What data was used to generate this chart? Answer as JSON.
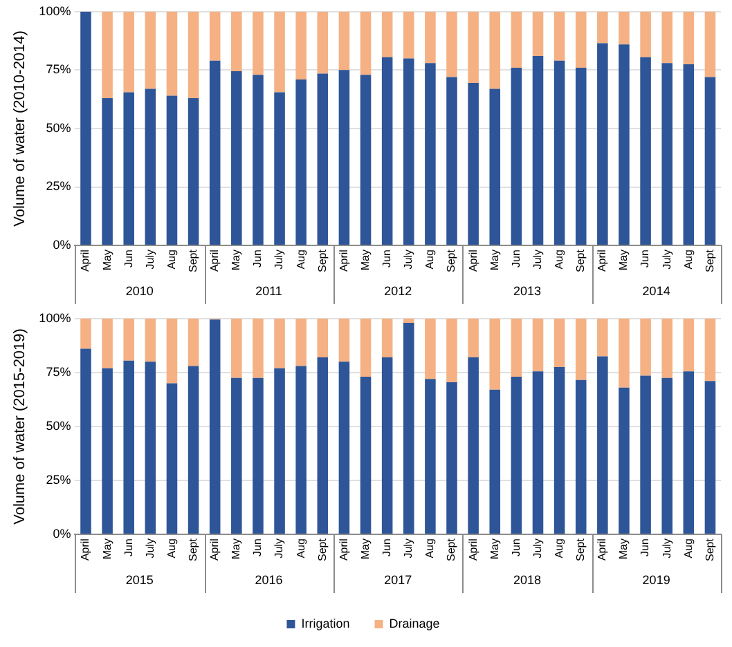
{
  "chart_data": [
    {
      "type": "bar",
      "stacked": true,
      "ylabel": "Volume of water (2010-2014)",
      "categories": [
        "April",
        "May",
        "Jun",
        "July",
        "Aug",
        "Sept",
        "April",
        "May",
        "Jun",
        "July",
        "Aug",
        "Sept",
        "April",
        "May",
        "Jun",
        "July",
        "Aug",
        "Sept",
        "April",
        "May",
        "Jun",
        "July",
        "Aug",
        "Sept",
        "April",
        "May",
        "Jun",
        "July",
        "Aug",
        "Sept"
      ],
      "series": [
        {
          "color": "#2e5597",
          "values": [
            100,
            63,
            65.5,
            67,
            64,
            63,
            79,
            74.5,
            73,
            65.5,
            71,
            73.5,
            75,
            73,
            80.5,
            80,
            78,
            72,
            69.5,
            67,
            76,
            81,
            79,
            76,
            86.5,
            86,
            80.5,
            78,
            77.5,
            72
          ]
        },
        {
          "color": "#f5b183",
          "values": [
            0,
            37,
            34.5,
            33,
            36,
            37,
            21,
            25.5,
            27,
            34.5,
            29,
            26.5,
            25,
            27,
            19.5,
            20,
            22,
            28,
            30.5,
            33,
            24,
            19,
            21,
            24,
            13.5,
            14,
            19.5,
            22,
            22.5,
            28
          ]
        }
      ],
      "ylim": [
        0,
        100
      ],
      "yticks": [
        {
          "value": 0,
          "label": "0%"
        },
        {
          "value": 25,
          "label": "25%"
        },
        {
          "value": 50,
          "label": "50%"
        },
        {
          "value": 75,
          "label": "75%"
        },
        {
          "value": 100,
          "label": "100%"
        }
      ],
      "grid": "y",
      "legend": false,
      "annotations": [
        "2010",
        "2011",
        "2012",
        "2013",
        "2014"
      ]
    },
    {
      "type": "bar",
      "stacked": true,
      "ylabel": "Volume of water (2015-2019)",
      "categories": [
        "April",
        "May",
        "Jun",
        "July",
        "Aug",
        "Sept",
        "April",
        "May",
        "Jun",
        "July",
        "Aug",
        "Sept",
        "April",
        "May",
        "Jun",
        "July",
        "Aug",
        "Sept",
        "April",
        "May",
        "Jun",
        "July",
        "Aug",
        "Sept",
        "April",
        "May",
        "Jun",
        "July",
        "Aug",
        "Sept"
      ],
      "series": [
        {
          "name": "Irrigation",
          "color": "#2e5597",
          "values": [
            86,
            77,
            80.5,
            80,
            70,
            78,
            99.5,
            72.5,
            72.5,
            77,
            78,
            82,
            80,
            73,
            82,
            98,
            72,
            70.5,
            82,
            67,
            73,
            75.5,
            77.5,
            71.5,
            82.5,
            68,
            73.5,
            72.5,
            75.5,
            71
          ]
        },
        {
          "name": "Drainage",
          "color": "#f5b183",
          "values": [
            14,
            23,
            19.5,
            20,
            30,
            22,
            0.5,
            27.5,
            27.5,
            23,
            22,
            18,
            20,
            27,
            18,
            2,
            28,
            29.5,
            18,
            33,
            27,
            24.5,
            22.5,
            28.5,
            17.5,
            32,
            26.5,
            27.5,
            24.5,
            29
          ]
        }
      ],
      "ylim": [
        0,
        100
      ],
      "yticks": [
        {
          "value": 0,
          "label": "0%"
        },
        {
          "value": 25,
          "label": "25%"
        },
        {
          "value": 50,
          "label": "50%"
        },
        {
          "value": 75,
          "label": "75%"
        },
        {
          "value": 100,
          "label": "100%"
        }
      ],
      "grid": "y",
      "legend": "bottom",
      "annotations": [
        "2015",
        "2016",
        "2017",
        "2018",
        "2019"
      ]
    }
  ]
}
